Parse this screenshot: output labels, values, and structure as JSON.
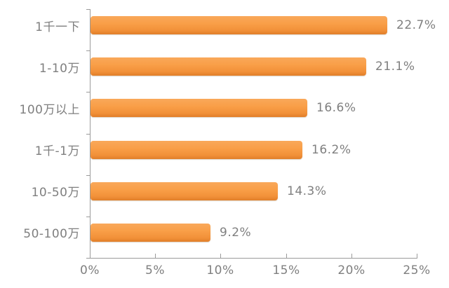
{
  "chart_data": {
    "type": "bar",
    "orientation": "horizontal",
    "title": "",
    "xlabel": "",
    "ylabel": "",
    "categories": [
      "1千一下",
      "1-10万",
      "100万以上",
      "1千-1万",
      "10-50万",
      "50-100万"
    ],
    "values": [
      22.7,
      21.1,
      16.6,
      16.2,
      14.3,
      9.2
    ],
    "value_labels": [
      "22.7%",
      "21.1%",
      "16.6%",
      "16.2%",
      "14.3%",
      "9.2%"
    ],
    "x_ticks": [
      "0%",
      "5%",
      "10%",
      "15%",
      "20%",
      "25%"
    ],
    "x_tick_values": [
      0,
      5,
      10,
      15,
      20,
      25
    ],
    "xlim": [
      0,
      25
    ],
    "grid": false,
    "legend": false,
    "colors": {
      "bar_top": "#f9a85a",
      "bar_mid": "#f99f48",
      "bar_low": "#f29139",
      "bar_edge": "#e07e29",
      "axis": "#9b9b9b",
      "text": "#7f7f7f",
      "background": "#ffffff"
    }
  }
}
